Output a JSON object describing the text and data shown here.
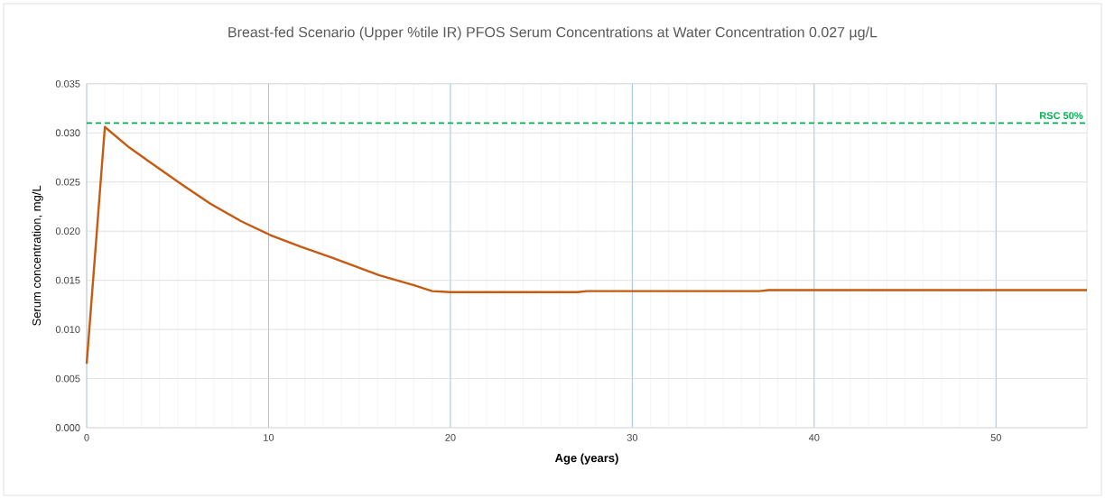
{
  "chart_data": {
    "type": "line",
    "title": "Breast-fed Scenario (Upper %tile IR) PFOS Serum Concentrations at Water Concentration 0.027 µg/L",
    "xlabel": "Age (years)",
    "ylabel": "Serum concentration, mg/L",
    "series": [
      {
        "color": "#c55a11",
        "x": [
          0,
          1,
          2.35,
          3.5,
          5.2,
          6.8,
          8.5,
          10.1,
          11.8,
          13.5,
          16.1,
          18,
          19,
          20,
          27,
          27.5,
          37,
          37.5,
          55
        ],
        "values": [
          0.0065,
          0.0306,
          0.0285,
          0.027,
          0.0248,
          0.0228,
          0.021,
          0.0196,
          0.0184,
          0.0173,
          0.0155,
          0.0145,
          0.0139,
          0.0138,
          0.0138,
          0.0139,
          0.0139,
          0.014,
          0.014
        ]
      }
    ],
    "xlim": [
      0,
      55
    ],
    "ylim": [
      0,
      0.035
    ],
    "xticks": [
      0,
      10,
      20,
      30,
      40,
      50
    ],
    "yticks": [
      {
        "value": 0,
        "label": "0.000"
      },
      {
        "value": 0.005,
        "label": "0.005"
      },
      {
        "value": 0.01,
        "label": "0.010"
      },
      {
        "value": 0.015,
        "label": "0.015"
      },
      {
        "value": 0.02,
        "label": "0.020"
      },
      {
        "value": 0.025,
        "label": "0.025"
      },
      {
        "value": 0.03,
        "label": "0.030"
      },
      {
        "value": 0.035,
        "label": "0.035"
      }
    ],
    "ref_lines": [
      {
        "axis": "y",
        "value": 0.031,
        "label": "RSC 50%",
        "color": "#00b050",
        "line_style": "dashed"
      }
    ],
    "grid": true,
    "marker": "none",
    "line_style": "solid"
  }
}
